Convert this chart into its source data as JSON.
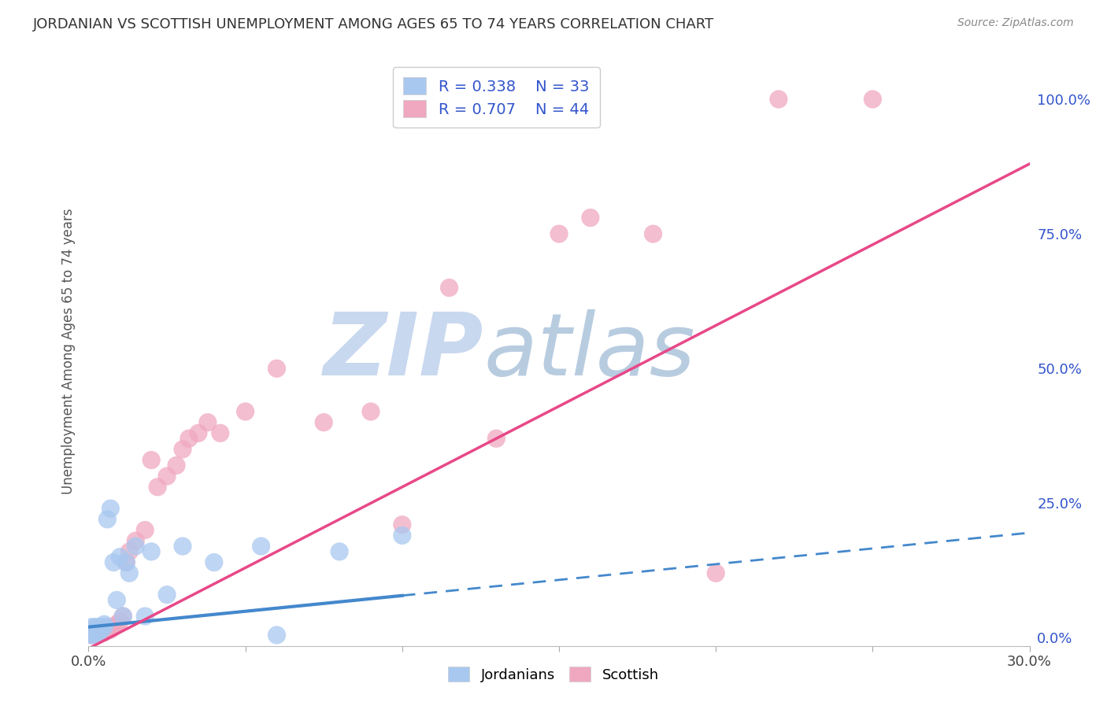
{
  "title": "JORDANIAN VS SCOTTISH UNEMPLOYMENT AMONG AGES 65 TO 74 YEARS CORRELATION CHART",
  "source": "Source: ZipAtlas.com",
  "ylabel": "Unemployment Among Ages 65 to 74 years",
  "xlim": [
    0.0,
    0.3
  ],
  "ylim": [
    -0.015,
    1.08
  ],
  "xticks": [
    0.0,
    0.05,
    0.1,
    0.15,
    0.2,
    0.25,
    0.3
  ],
  "xticklabels": [
    "0.0%",
    "",
    "",
    "",
    "",
    "",
    "30.0%"
  ],
  "yticks_right": [
    0.0,
    0.25,
    0.5,
    0.75,
    1.0
  ],
  "ytick_right_labels": [
    "0.0%",
    "25.0%",
    "50.0%",
    "75.0%",
    "100.0%"
  ],
  "legend_r1": "R = 0.338",
  "legend_n1": "N = 33",
  "legend_r2": "R = 0.707",
  "legend_n2": "N = 44",
  "color_jordanian": "#a8c8f0",
  "color_scottish": "#f0a8c0",
  "color_line_jordanian": "#4488cc",
  "color_line_scottish": "#e84888",
  "color_title": "#333333",
  "color_legend_text": "#3355cc",
  "background_color": "#ffffff",
  "watermark_zip": "ZIP",
  "watermark_atlas": "atlas",
  "watermark_color_zip": "#c8d8ee",
  "watermark_color_atlas": "#b8cce0",
  "grid_color": "#cccccc",
  "jordanian_x": [
    0.001,
    0.001,
    0.001,
    0.001,
    0.002,
    0.002,
    0.002,
    0.002,
    0.003,
    0.003,
    0.003,
    0.004,
    0.004,
    0.005,
    0.005,
    0.006,
    0.007,
    0.008,
    0.009,
    0.01,
    0.011,
    0.012,
    0.013,
    0.015,
    0.018,
    0.02,
    0.025,
    0.03,
    0.04,
    0.055,
    0.06,
    0.08,
    0.1
  ],
  "jordanian_y": [
    0.005,
    0.01,
    0.015,
    0.02,
    0.005,
    0.01,
    0.015,
    0.02,
    0.01,
    0.015,
    0.02,
    0.015,
    0.02,
    0.02,
    0.025,
    0.22,
    0.24,
    0.14,
    0.07,
    0.15,
    0.04,
    0.14,
    0.12,
    0.17,
    0.04,
    0.16,
    0.08,
    0.17,
    0.14,
    0.17,
    0.005,
    0.16,
    0.19
  ],
  "scottish_x": [
    0.001,
    0.001,
    0.001,
    0.002,
    0.002,
    0.002,
    0.003,
    0.003,
    0.004,
    0.004,
    0.005,
    0.005,
    0.006,
    0.007,
    0.008,
    0.009,
    0.01,
    0.011,
    0.012,
    0.013,
    0.015,
    0.018,
    0.02,
    0.022,
    0.025,
    0.028,
    0.03,
    0.032,
    0.035,
    0.038,
    0.042,
    0.05,
    0.06,
    0.075,
    0.09,
    0.1,
    0.115,
    0.13,
    0.15,
    0.16,
    0.18,
    0.2,
    0.22,
    0.25
  ],
  "scottish_y": [
    0.005,
    0.01,
    0.015,
    0.005,
    0.01,
    0.015,
    0.01,
    0.015,
    0.01,
    0.015,
    0.01,
    0.015,
    0.02,
    0.015,
    0.02,
    0.025,
    0.03,
    0.04,
    0.14,
    0.16,
    0.18,
    0.2,
    0.33,
    0.28,
    0.3,
    0.32,
    0.35,
    0.37,
    0.38,
    0.4,
    0.38,
    0.42,
    0.5,
    0.4,
    0.42,
    0.21,
    0.65,
    0.37,
    0.75,
    0.78,
    0.75,
    0.12,
    1.0,
    1.0
  ],
  "trend_jordanian_x0": 0.0,
  "trend_jordanian_y0": 0.02,
  "trend_jordanian_x1": 0.3,
  "trend_jordanian_y1": 0.195,
  "trend_scottish_x0": 0.0,
  "trend_scottish_y0": -0.02,
  "trend_scottish_x1": 0.3,
  "trend_scottish_y1": 0.88
}
